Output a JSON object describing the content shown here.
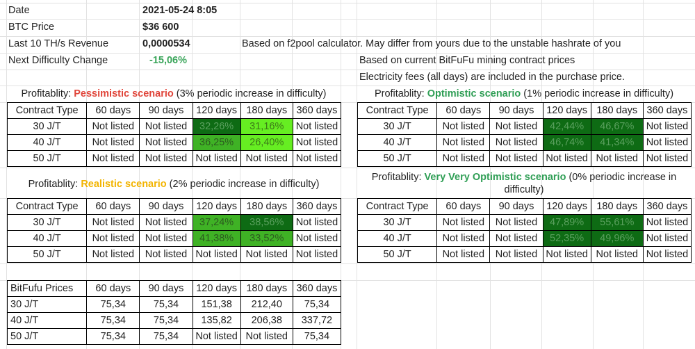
{
  "info": {
    "date_label": "Date",
    "date_value": "2021-05-24 8:05",
    "btc_label": "BTC Price",
    "btc_value": "$36 600",
    "revenue_label": "Last 10 TH/s Revenue",
    "revenue_value": "0,0000534",
    "diff_label": "Next Difficulty Change",
    "diff_value": "-15,06%",
    "note1": "Based on f2pool calculator. May differ from yours due to the unstable hashrate of you",
    "note2": "Based on current BitFuFu mining contract prices",
    "note3": "Electricity fees (all days) are included in the purchase price."
  },
  "headers": [
    "Contract Type",
    "60 days",
    "90 days",
    "120 days",
    "180 days",
    "360 days"
  ],
  "pessimistic": {
    "prefix": "Profitablity: ",
    "name": "Pessimistic scenario",
    "suffix": " (3% periodic increase in difficulty)",
    "rows": [
      [
        "30 J/T",
        "Not listed",
        "Not listed",
        "32,26%",
        "31,16%",
        "Not listed"
      ],
      [
        "40 J/T",
        "Not listed",
        "Not listed",
        "36,25%",
        "26,40%",
        "Not listed"
      ],
      [
        "50 J/T",
        "Not listed",
        "Not listed",
        "Not listed",
        "Not listed",
        "Not listed"
      ]
    ]
  },
  "optimistic": {
    "prefix": "Profitablity: ",
    "name": "Optimistic scenario",
    "suffix": " (1% periodic increase in difficulty)",
    "rows": [
      [
        "30 J/T",
        "Not listed",
        "Not listed",
        "42,44%",
        "46,67%",
        "Not listed"
      ],
      [
        "40 J/T",
        "Not listed",
        "Not listed",
        "46,74%",
        "41,34%",
        "Not listed"
      ],
      [
        "50 J/T",
        "Not listed",
        "Not listed",
        "Not listed",
        "Not listed",
        "Not listed"
      ]
    ]
  },
  "realistic": {
    "prefix": "Profitablity: ",
    "name": "Realistic scenario",
    "suffix": " (2% periodic increase in difficulty)",
    "rows": [
      [
        "30 J/T",
        "Not listed",
        "Not listed",
        "37,24%",
        "38,56%",
        "Not listed"
      ],
      [
        "40 J/T",
        "Not listed",
        "Not listed",
        "41,38%",
        "33,52%",
        "Not listed"
      ],
      [
        "50 J/T",
        "Not listed",
        "Not listed",
        "Not listed",
        "Not listed",
        "Not listed"
      ]
    ]
  },
  "very_optimistic": {
    "prefix": "Profitablity: ",
    "name": "Very Very Optimistic scenario",
    "suffix": " (0% periodic increase in",
    "line2": "difficulty)",
    "rows": [
      [
        "30 J/T",
        "Not listed",
        "Not listed",
        "47,89%",
        "55,61%",
        "Not listed"
      ],
      [
        "40 J/T",
        "Not listed",
        "Not listed",
        "52,35%",
        "49,96%",
        "Not listed"
      ],
      [
        "50 J/T",
        "Not listed",
        "Not listed",
        "Not listed",
        "Not listed",
        "Not listed"
      ]
    ]
  },
  "prices": {
    "header": "BitFufu Prices",
    "rows": [
      [
        "30 J/T",
        "75,34",
        "75,34",
        "151,38",
        "212,40",
        "75,34"
      ],
      [
        "40 J/T",
        "75,34",
        "75,34",
        "135,82",
        "206,38",
        "337,72"
      ],
      [
        "50 J/T",
        "75,34",
        "75,34",
        "Not listed",
        "Not listed",
        "75,34"
      ]
    ]
  },
  "colors": {
    "dark_green": "#0e6b14",
    "mid_green": "#3fb225",
    "light_green": "#66ee22",
    "pessimistic": "#e0453a",
    "optimistic": "#2f9e55",
    "realistic": "#f2b400"
  }
}
